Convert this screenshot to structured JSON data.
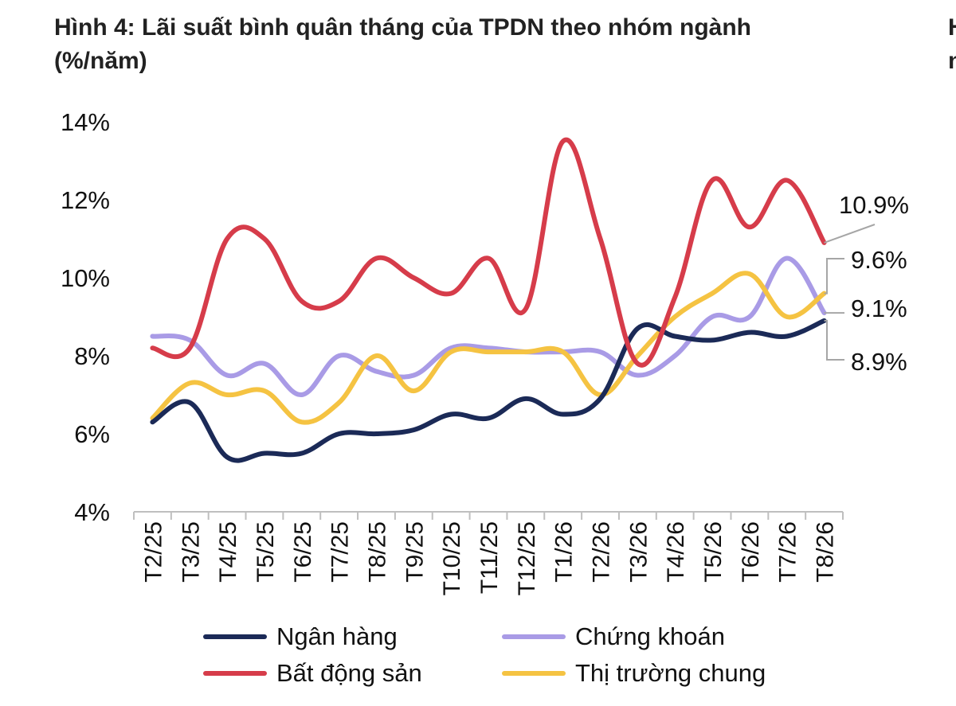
{
  "title_lines": [
    "Hình 4: Lãi suất bình quân tháng của TPDN theo nhóm ngành",
    "(%/năm)"
  ],
  "cut_title_lines": [
    "H",
    "n"
  ],
  "chart_data": {
    "type": "line",
    "title": "Hình 4: Lãi suất bình quân tháng của TPDN theo nhóm ngành (%/năm)",
    "xlabel": "",
    "ylabel": "",
    "ylim": [
      4,
      14
    ],
    "y_ticks": [
      "4%",
      "6%",
      "8%",
      "10%",
      "12%",
      "14%"
    ],
    "y_tick_values": [
      4,
      6,
      8,
      10,
      12,
      14
    ],
    "grid": false,
    "legend_position": "bottom",
    "categories": [
      "T2/25",
      "T3/25",
      "T4/25",
      "T5/25",
      "T6/25",
      "T7/25",
      "T8/25",
      "T9/25",
      "T10/25",
      "T11/25",
      "T12/25",
      "T1/26",
      "T2/26",
      "T3/26",
      "T4/26",
      "T5/26",
      "T6/26",
      "T7/26",
      "T8/26"
    ],
    "series": [
      {
        "name": "Ngân hàng",
        "color": "#1b2a57",
        "values": [
          6.3,
          6.8,
          5.4,
          5.5,
          5.5,
          6.0,
          6.0,
          6.1,
          6.5,
          6.4,
          6.9,
          6.5,
          6.9,
          8.7,
          8.5,
          8.4,
          8.6,
          8.5,
          8.9
        ]
      },
      {
        "name": "Chứng khoán",
        "color": "#a99be6",
        "values": [
          8.5,
          8.4,
          7.5,
          7.8,
          7.0,
          8.0,
          7.6,
          7.5,
          8.2,
          8.2,
          8.1,
          8.1,
          8.1,
          7.5,
          8.0,
          9.0,
          9.0,
          10.5,
          9.1
        ]
      },
      {
        "name": "Bất động sản",
        "color": "#d63c4a",
        "values": [
          8.2,
          8.2,
          11.0,
          11.0,
          9.4,
          9.4,
          10.5,
          10.0,
          9.6,
          10.5,
          9.2,
          13.5,
          11.0,
          7.8,
          9.5,
          12.5,
          11.3,
          12.5,
          10.9
        ]
      },
      {
        "name": "Thị trường chung",
        "color": "#f5c342",
        "values": [
          6.4,
          7.3,
          7.0,
          7.1,
          6.3,
          6.8,
          8.0,
          7.1,
          8.1,
          8.1,
          8.1,
          8.1,
          7.0,
          8.0,
          9.0,
          9.6,
          10.1,
          9.0,
          9.6
        ]
      }
    ],
    "end_labels": [
      {
        "text": "10.9%",
        "series": "Bất động sản"
      },
      {
        "text": "9.6%",
        "series": "Thị trường chung"
      },
      {
        "text": "9.1%",
        "series": "Chứng khoán"
      },
      {
        "text": "8.9%",
        "series": "Ngân hàng"
      }
    ],
    "legend": [
      {
        "label": "Ngân hàng",
        "color": "#1b2a57"
      },
      {
        "label": "Chứng khoán",
        "color": "#a99be6"
      },
      {
        "label": "Bất động sản",
        "color": "#d63c4a"
      },
      {
        "label": "Thị trường chung",
        "color": "#f5c342"
      }
    ]
  }
}
